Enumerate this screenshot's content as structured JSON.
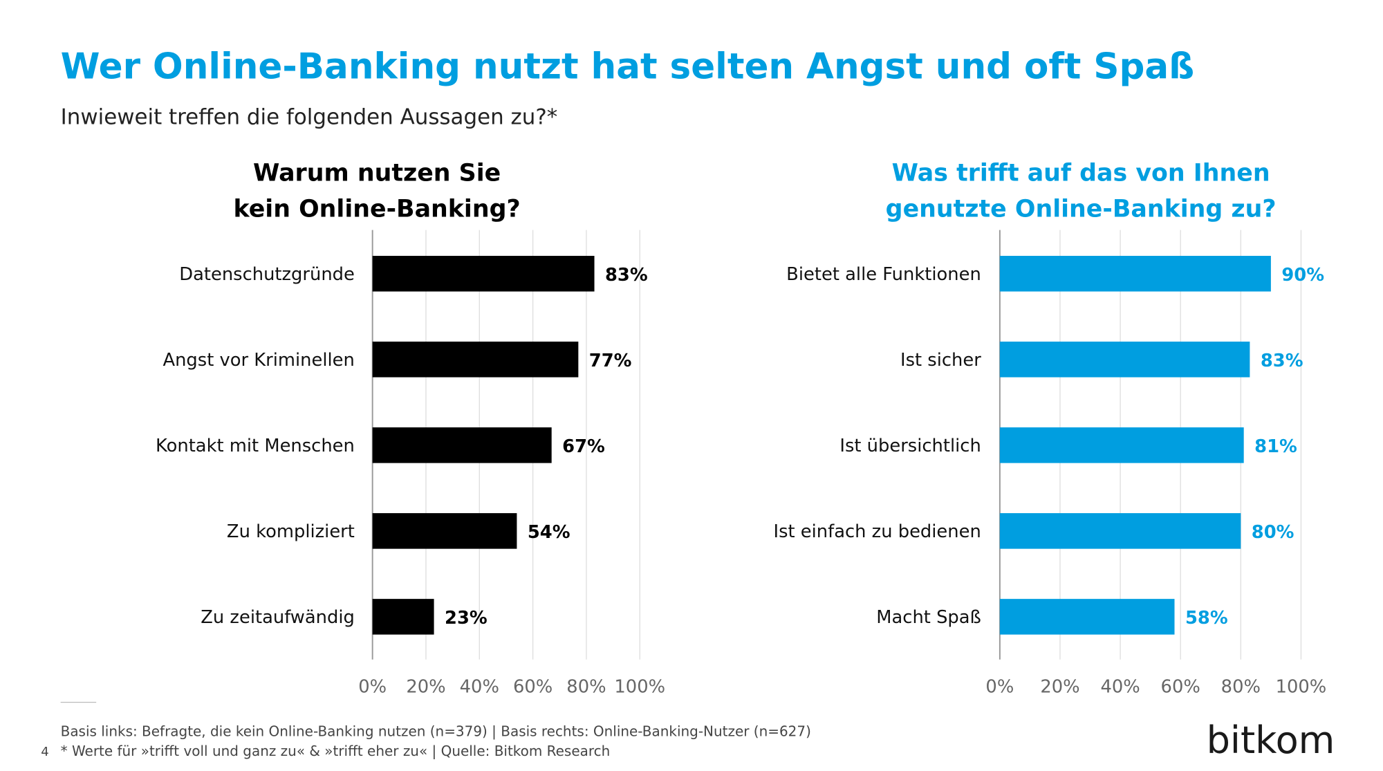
{
  "title": "Wer Online-Banking nutzt hat selten Angst und oft Spaß",
  "subtitle": "Inwieweit treffen die folgenden Aussagen zu?*",
  "chart_data": [
    {
      "type": "hbar",
      "title": [
        "Warum nutzen Sie",
        "kein Online-Banking?"
      ],
      "title_color": "#000000",
      "categories": [
        "Datenschutzgründe",
        "Angst vor Kriminellen",
        "Kontakt mit Menschen",
        "Zu kompliziert",
        "Zu zeitaufwändig"
      ],
      "values": [
        83,
        77,
        67,
        54,
        23
      ],
      "value_labels": [
        "83%",
        "77%",
        "67%",
        "54%",
        "23%"
      ],
      "color": "#000000",
      "xlim": [
        0,
        100
      ],
      "xticks": [
        {
          "value": 0,
          "label": "0%"
        },
        {
          "value": 20,
          "label": "20%"
        },
        {
          "value": 40,
          "label": "40%"
        },
        {
          "value": 60,
          "label": "60%"
        },
        {
          "value": 80,
          "label": "80%"
        },
        {
          "value": 100,
          "label": "100%"
        }
      ],
      "grid": true
    },
    {
      "type": "hbar",
      "title": [
        "Was trifft auf das von Ihnen",
        "genutzte Online-Banking zu?"
      ],
      "title_color": "#009ee0",
      "categories": [
        "Bietet alle Funktionen",
        "Ist sicher",
        "Ist übersichtlich",
        "Ist einfach zu bedienen",
        "Macht Spaß"
      ],
      "values": [
        90,
        83,
        81,
        80,
        58
      ],
      "value_labels": [
        "90%",
        "83%",
        "81%",
        "80%",
        "58%"
      ],
      "color": "#009ee0",
      "xlim": [
        0,
        100
      ],
      "xticks": [
        {
          "value": 0,
          "label": "0%"
        },
        {
          "value": 20,
          "label": "20%"
        },
        {
          "value": 40,
          "label": "40%"
        },
        {
          "value": 60,
          "label": "60%"
        },
        {
          "value": 80,
          "label": "80%"
        },
        {
          "value": 100,
          "label": "100%"
        }
      ],
      "grid": true
    }
  ],
  "footnotes": [
    "Basis links: Befragte, die kein Online-Banking nutzen (n=379) | Basis rechts: Online-Banking-Nutzer (n=627)",
    "* Werte für »trifft voll und ganz zu« & »trifft eher zu« | Quelle: Bitkom Research"
  ],
  "page_number": "4",
  "logo": "bitkom"
}
